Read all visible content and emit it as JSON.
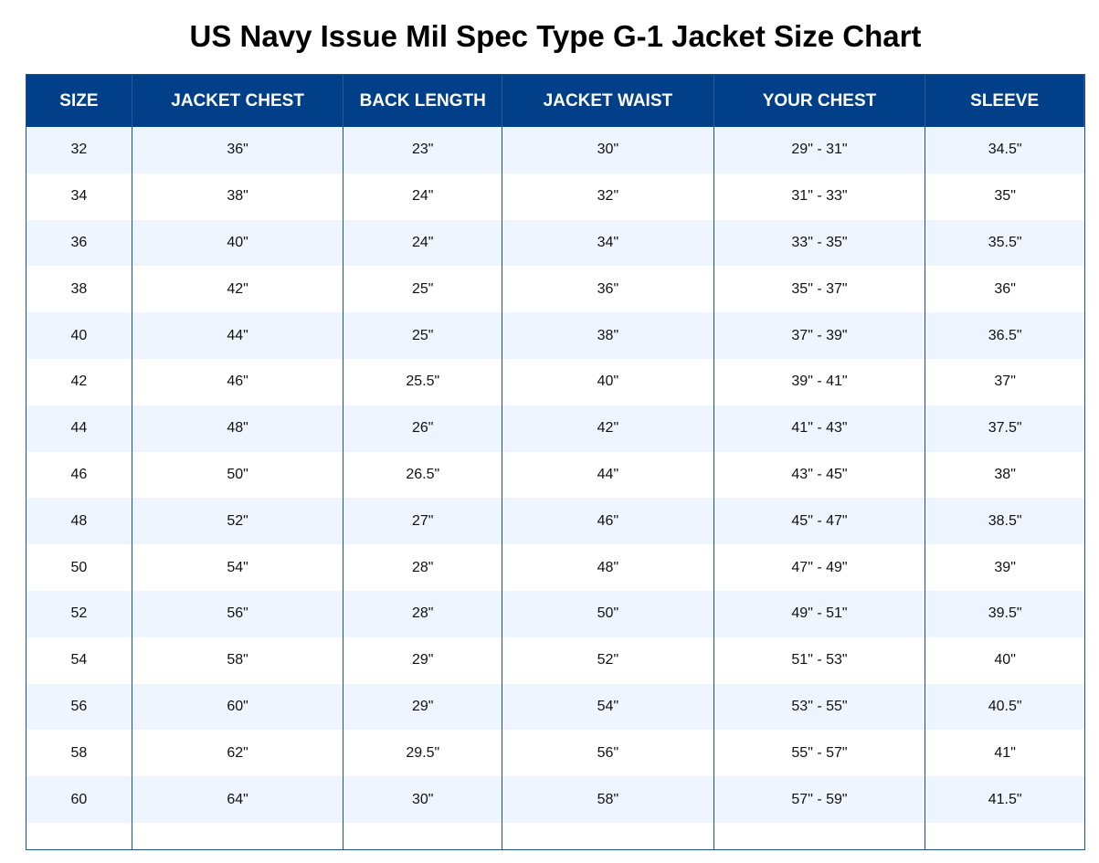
{
  "header": {
    "title": "US Navy Issue Mil Spec Type G-1 Jacket Size Chart"
  },
  "table": {
    "columns": [
      "SIZE",
      "JACKET CHEST",
      "BACK LENGTH",
      "JACKET WAIST",
      "YOUR CHEST",
      "SLEEVE"
    ],
    "rows": [
      [
        "32",
        "36\"",
        "23\"",
        "30\"",
        "29\" - 31\"",
        "34.5\""
      ],
      [
        "34",
        "38\"",
        "24\"",
        "32\"",
        "31\" - 33\"",
        "35\""
      ],
      [
        "36",
        "40\"",
        "24\"",
        "34\"",
        "33\" - 35\"",
        "35.5\""
      ],
      [
        "38",
        "42\"",
        "25\"",
        "36\"",
        "35\" - 37\"",
        "36\""
      ],
      [
        "40",
        "44\"",
        "25\"",
        "38\"",
        "37\" - 39\"",
        "36.5\""
      ],
      [
        "42",
        "46\"",
        "25.5\"",
        "40\"",
        "39\" - 41\"",
        "37\""
      ],
      [
        "44",
        "48\"",
        "26\"",
        "42\"",
        "41\" - 43\"",
        "37.5\""
      ],
      [
        "46",
        "50\"",
        "26.5\"",
        "44\"",
        "43\" - 45\"",
        "38\""
      ],
      [
        "48",
        "52\"",
        "27\"",
        "46\"",
        "45\" - 47\"",
        "38.5\""
      ],
      [
        "50",
        "54\"",
        "28\"",
        "48\"",
        "47\" - 49\"",
        "39\""
      ],
      [
        "52",
        "56\"",
        "28\"",
        "50\"",
        "49\" - 51\"",
        "39.5\""
      ],
      [
        "54",
        "58\"",
        "29\"",
        "52\"",
        "51\" - 53\"",
        "40\""
      ],
      [
        "56",
        "60\"",
        "29\"",
        "54\"",
        "53\" - 55\"",
        "40.5\""
      ],
      [
        "58",
        "62\"",
        "29.5\"",
        "56\"",
        "55\" - 57\"",
        "41\""
      ],
      [
        "60",
        "64\"",
        "30\"",
        "58\"",
        "57\" - 59\"",
        "41.5\""
      ]
    ]
  }
}
